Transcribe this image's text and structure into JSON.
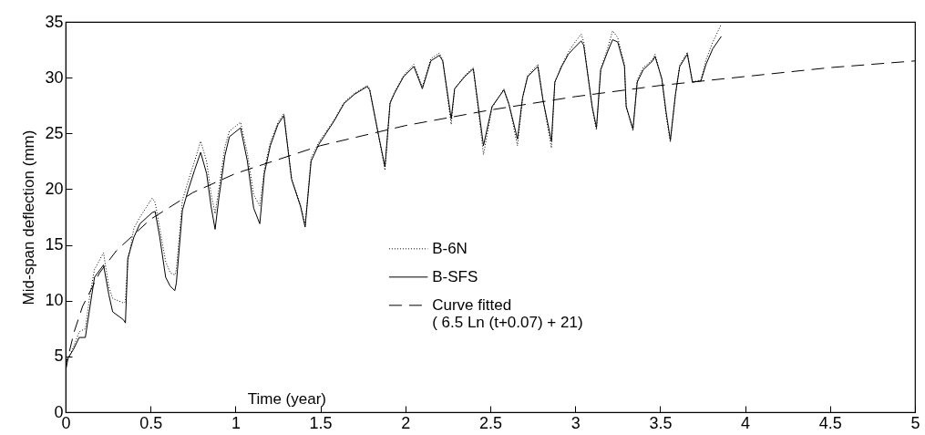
{
  "chart_data": {
    "type": "line",
    "xlabel": "Time (year)",
    "ylabel": "Mid-span deflection (mm)",
    "xlim": [
      0,
      5
    ],
    "xticks": [
      0,
      0.5,
      1,
      1.5,
      2,
      2.5,
      3,
      3.5,
      4,
      4.5,
      5
    ],
    "ylim": [
      0,
      35
    ],
    "yticks": [
      0,
      5,
      10,
      15,
      20,
      25,
      30,
      35
    ],
    "legend": "center",
    "x": [
      0,
      0.045,
      0.08,
      0.116,
      0.143,
      0.17,
      0.223,
      0.255,
      0.277,
      0.34,
      0.352,
      0.366,
      0.402,
      0.4375,
      0.51,
      0.527,
      0.554,
      0.589,
      0.616,
      0.643,
      0.652,
      0.6875,
      0.723,
      0.759,
      0.795,
      0.83,
      0.857,
      0.88,
      0.902,
      0.9375,
      0.964,
      1.03,
      1.07,
      1.107,
      1.143,
      1.17,
      1.205,
      1.25,
      1.285,
      1.33,
      1.384,
      1.41,
      1.445,
      1.49,
      1.58,
      1.64,
      1.7,
      1.775,
      1.79,
      1.84,
      1.88,
      1.91,
      1.936,
      1.99,
      2.05,
      2.1,
      2.15,
      2.2,
      2.22,
      2.27,
      2.29,
      2.35,
      2.4,
      2.46,
      2.51,
      2.58,
      2.61,
      2.66,
      2.69,
      2.72,
      2.78,
      2.81,
      2.86,
      2.88,
      2.92,
      2.96,
      2.99,
      3.035,
      3.05,
      3.1,
      3.125,
      3.15,
      3.19,
      3.22,
      3.25,
      3.29,
      3.3,
      3.34,
      3.365,
      3.4,
      3.455,
      3.47,
      3.51,
      3.535,
      3.56,
      3.59,
      3.615,
      3.66,
      3.69,
      3.74,
      3.77,
      3.81,
      3.86
    ],
    "series": [
      {
        "name": "B-6N",
        "color": "#000000",
        "line_style": "dotted",
        "values": [
          4.3,
          5.8,
          7.2,
          7.5,
          10.5,
          12.8,
          14.3,
          11.2,
          10.2,
          9.8,
          9.9,
          13.5,
          16.5,
          17.5,
          19.2,
          18.8,
          16.5,
          13.5,
          12.5,
          12.3,
          12.8,
          19,
          20.8,
          22.5,
          24.3,
          22.5,
          19.5,
          17.8,
          20,
          23.8,
          25.2,
          26,
          23.2,
          19.5,
          18.5,
          21.8,
          24.2,
          26,
          26.8,
          21,
          18.5,
          16.8,
          22.8,
          24.2,
          26.2,
          27.8,
          28.6,
          29.3,
          29,
          25,
          21.7,
          27.8,
          28.7,
          30.2,
          31.2,
          29.2,
          31.7,
          32.2,
          31.6,
          25.8,
          29,
          30.2,
          30.9,
          23.1,
          27.3,
          29,
          27.6,
          23.9,
          28.2,
          30.2,
          31.2,
          28,
          23.7,
          29.6,
          31.1,
          32.3,
          33,
          33.9,
          33.2,
          27.2,
          25.3,
          30.8,
          32.6,
          34.2,
          33.6,
          31.2,
          27.4,
          25.2,
          29.8,
          30.9,
          31.6,
          32.1,
          29.8,
          26.6,
          24.2,
          28.5,
          31.1,
          32.3,
          29.6,
          29.8,
          31.6,
          33.2,
          34.8
        ]
      },
      {
        "name": "B-SFS",
        "color": "#000000",
        "line_style": "solid",
        "values": [
          4.5,
          5.6,
          6.7,
          6.7,
          9.4,
          12.1,
          13.2,
          10.5,
          9,
          8.3,
          8,
          13.8,
          15.7,
          16.9,
          17.9,
          18,
          15.7,
          12.1,
          11.3,
          10.9,
          11.6,
          18.1,
          20,
          21.7,
          23.3,
          21.4,
          18.4,
          16.4,
          19.2,
          23,
          24.7,
          25.5,
          22.5,
          18.3,
          16.9,
          21.4,
          23.9,
          25.8,
          26.6,
          20.9,
          18.4,
          16.6,
          22.5,
          24,
          26.1,
          27.7,
          28.5,
          29.2,
          28.9,
          25,
          22,
          27.7,
          28.6,
          30.1,
          31,
          29,
          31.5,
          32,
          31.5,
          26.3,
          29,
          30.1,
          30.8,
          23.9,
          27.4,
          28.9,
          27.6,
          24.5,
          28.2,
          30.1,
          31,
          28,
          24.3,
          29.6,
          31,
          32.1,
          32.6,
          33.3,
          32.9,
          27.4,
          25.5,
          30.7,
          32.3,
          33.4,
          33.2,
          31,
          27.4,
          25.4,
          29.6,
          30.7,
          31.5,
          31.9,
          29.9,
          26.9,
          24.4,
          28.5,
          31,
          32.1,
          29.6,
          29.7,
          31.2,
          32.6,
          33.7
        ]
      },
      {
        "name": "Curve fitted\n( 6.5 Ln (t+0.07) + 21)",
        "color": "#000000",
        "line_style": "dashed",
        "x": [
          0,
          0.02,
          0.05,
          0.1,
          0.2,
          0.3,
          0.5,
          0.75,
          1,
          1.5,
          2,
          2.5,
          3,
          3.5,
          4,
          4.5,
          5
        ],
        "values": [
          3.7,
          5.3,
          7.2,
          9.5,
          12.5,
          14.5,
          17.3,
          19.7,
          21.4,
          23.9,
          25.7,
          27.1,
          28.3,
          29.3,
          30.1,
          30.9,
          31.5
        ]
      }
    ]
  }
}
